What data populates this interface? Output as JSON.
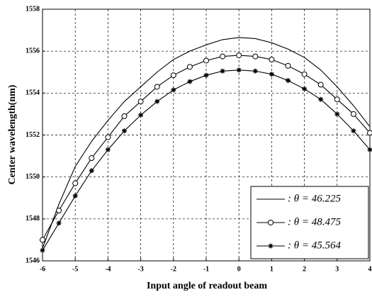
{
  "chart_data": {
    "type": "line",
    "x_label": "Input angle of readout beam",
    "y_label": "Center wavelength(nm)",
    "x": [
      -6,
      -5.5,
      -5,
      -4.5,
      -4,
      -3.5,
      -3,
      -2.5,
      -2,
      -1.5,
      -1,
      -0.5,
      0,
      0.5,
      1,
      1.5,
      2,
      2.5,
      3,
      3.5,
      4
    ],
    "series": [
      {
        "name": ": θ = 46.225",
        "color": "#000000",
        "marker": "none",
        "values": [
          1546.6,
          1548.7,
          1550.5,
          1551.7,
          1552.7,
          1553.6,
          1554.3,
          1555.0,
          1555.6,
          1556.0,
          1556.3,
          1556.55,
          1556.65,
          1556.6,
          1556.4,
          1556.1,
          1555.7,
          1555.1,
          1554.3,
          1553.4,
          1552.4
        ]
      },
      {
        "name": ": θ = 48.475",
        "color": "#000000",
        "marker": "circle",
        "values": [
          1547.0,
          1548.4,
          1549.7,
          1550.9,
          1551.9,
          1552.9,
          1553.6,
          1554.3,
          1554.85,
          1555.25,
          1555.55,
          1555.75,
          1555.8,
          1555.75,
          1555.6,
          1555.3,
          1554.9,
          1554.4,
          1553.7,
          1553.0,
          1552.1
        ]
      },
      {
        "name": ": θ = 45.564",
        "color": "#000000",
        "marker": "star",
        "values": [
          1546.5,
          1547.8,
          1549.1,
          1550.3,
          1551.3,
          1552.2,
          1552.95,
          1553.6,
          1554.15,
          1554.55,
          1554.85,
          1555.05,
          1555.1,
          1555.05,
          1554.9,
          1554.6,
          1554.2,
          1553.7,
          1553.0,
          1552.2,
          1551.3
        ]
      }
    ],
    "xlim": [
      -6,
      4
    ],
    "xticks": [
      -6,
      -5,
      -4,
      -3,
      -2,
      -1,
      0,
      1,
      2,
      3,
      4
    ],
    "ylim": [
      1546,
      1558
    ],
    "yticks": [
      1546,
      1548,
      1550,
      1552,
      1554,
      1556,
      1558
    ],
    "grid": true,
    "legend": "lower right"
  }
}
